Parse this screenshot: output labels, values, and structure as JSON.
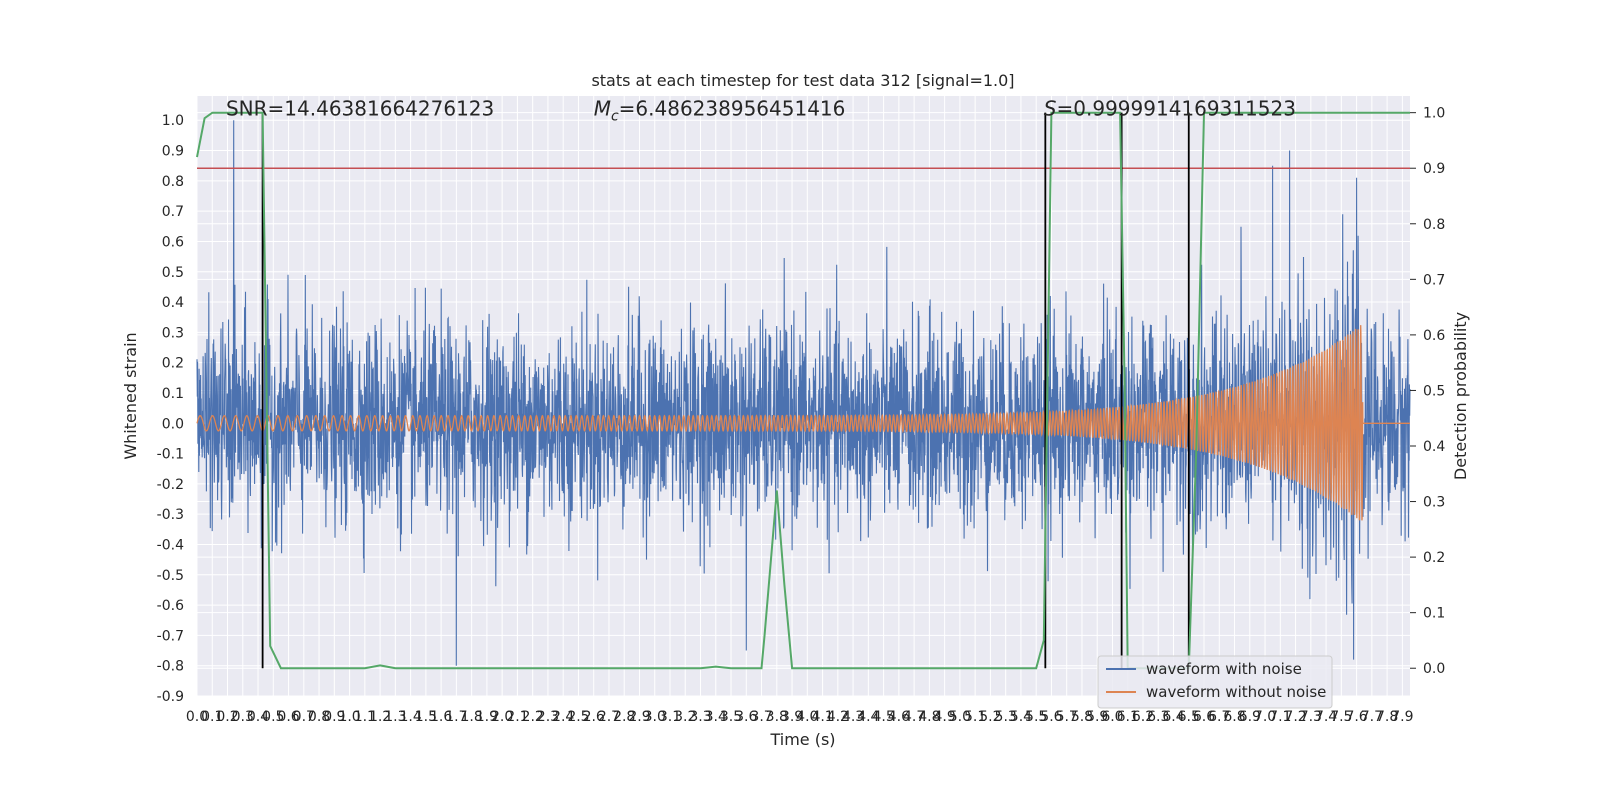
{
  "chart_data": {
    "type": "line",
    "title": "stats at each timestep for test data 312 [signal=1.0]",
    "xlabel": "Time (s)",
    "ylabel": "Whitened strain",
    "y2label": "Detection probability",
    "xlim": [
      0.0,
      7.95
    ],
    "ylim": [
      -0.9,
      1.08
    ],
    "y2lim": [
      -0.05,
      1.03
    ],
    "x_ticks": [
      0.0,
      0.1,
      0.2,
      0.3,
      0.4,
      0.5,
      0.6,
      0.7,
      0.8,
      0.9,
      1.0,
      1.1,
      1.2,
      1.3,
      1.4,
      1.5,
      1.6,
      1.7,
      1.8,
      1.9,
      2.0,
      2.1,
      2.2,
      2.3,
      2.4,
      2.5,
      2.6,
      2.7,
      2.8,
      2.9,
      3.0,
      3.1,
      3.2,
      3.3,
      3.4,
      3.5,
      3.6,
      3.7,
      3.8,
      3.9,
      4.0,
      4.1,
      4.2,
      4.3,
      4.4,
      4.5,
      4.6,
      4.7,
      4.8,
      4.9,
      5.0,
      5.1,
      5.2,
      5.3,
      5.4,
      5.5,
      5.6,
      5.7,
      5.8,
      5.9,
      6.0,
      6.1,
      6.2,
      6.3,
      6.4,
      6.5,
      6.6,
      6.7,
      6.8,
      6.9,
      7.0,
      7.1,
      7.2,
      7.3,
      7.4,
      7.5,
      7.6,
      7.7,
      7.8,
      7.9
    ],
    "y_ticks": [
      -0.9,
      -0.8,
      -0.7,
      -0.6,
      -0.5,
      -0.4,
      -0.3,
      -0.2,
      -0.1,
      0.0,
      0.1,
      0.2,
      0.3,
      0.4,
      0.5,
      0.6,
      0.7,
      0.8,
      0.9,
      1.0
    ],
    "y2_ticks": [
      0.0,
      0.1,
      0.2,
      0.3,
      0.4,
      0.5,
      0.6,
      0.7,
      0.8,
      0.9,
      1.0
    ],
    "annotations": [
      {
        "text": "SNR=14.46381664276123",
        "x": 0.19,
        "y": 1.015
      },
      {
        "text": "M_c=6.486238956451416",
        "x": 2.6,
        "y": 1.015,
        "math": true
      },
      {
        "text": "S=0.9999914169311523",
        "x": 5.55,
        "y": 1.015,
        "math": true
      }
    ],
    "threshold_line": {
      "y2": 0.9,
      "color": "#c44e52"
    },
    "vertical_lines": [
      {
        "x": 0.43,
        "y2_from": 0.0,
        "y2_to": 1.0
      },
      {
        "x": 5.56,
        "y2_from": 0.0,
        "y2_to": 1.0
      },
      {
        "x": 6.06,
        "y2_from": 0.0,
        "y2_to": 1.0
      },
      {
        "x": 6.5,
        "y2_from": 0.0,
        "y2_to": 1.0
      }
    ],
    "series": [
      {
        "name": "waveform with noise",
        "color": "#4c72b0",
        "axis": "left",
        "envelope_peaks": [
          {
            "x": 0.24,
            "y": 1.0
          },
          {
            "x": 0.43,
            "y": 0.8
          },
          {
            "x": 1.7,
            "y": -0.8
          },
          {
            "x": 3.6,
            "y": -0.75
          },
          {
            "x": 7.16,
            "y": 0.9
          },
          {
            "x": 7.05,
            "y": 0.85
          },
          {
            "x": 7.6,
            "y": 0.81
          },
          {
            "x": 7.58,
            "y": -0.78
          }
        ],
        "noise_std": 0.16,
        "duration": 8.0
      },
      {
        "name": "waveform without noise",
        "color": "#dd8452",
        "axis": "left",
        "chirp": {
          "f_start": 12,
          "f_end": 60,
          "amp_start": 0.025,
          "amp_peak": 0.33,
          "merger_time": 7.64,
          "end_time": 7.95
        }
      },
      {
        "name": "detection probability",
        "color": "#55a868",
        "axis": "right",
        "x": [
          0.0,
          0.05,
          0.1,
          0.2,
          0.3,
          0.43,
          0.48,
          0.55,
          0.8,
          1.0,
          1.1,
          1.2,
          1.3,
          1.5,
          2.0,
          2.5,
          3.0,
          3.3,
          3.4,
          3.5,
          3.7,
          3.72,
          3.8,
          3.85,
          3.9,
          3.93,
          4.0,
          4.5,
          5.0,
          5.5,
          5.55,
          5.6,
          5.8,
          5.9,
          6.05,
          6.08,
          6.1,
          6.15,
          6.2,
          6.5,
          6.55,
          6.6,
          6.7,
          7.0,
          7.5,
          7.95
        ],
        "y": [
          0.92,
          0.99,
          1.0,
          1.0,
          1.0,
          1.0,
          0.04,
          0.0,
          0.0,
          0.0,
          0.0,
          0.005,
          0.0,
          0.0,
          0.0,
          0.0,
          0.0,
          0.0,
          0.003,
          0.0,
          0.0,
          0.06,
          0.32,
          0.15,
          0.0,
          0.0,
          0.0,
          0.0,
          0.0,
          0.0,
          0.05,
          1.0,
          1.0,
          1.0,
          1.0,
          0.5,
          0.0,
          0.0,
          0.0,
          0.0,
          0.4,
          1.0,
          1.0,
          1.0,
          1.0,
          1.0
        ]
      }
    ],
    "legend": {
      "placement": "bottom-right",
      "entries": [
        {
          "label": "waveform with noise",
          "color": "#4c72b0"
        },
        {
          "label": "waveform without noise",
          "color": "#dd8452"
        }
      ]
    }
  }
}
